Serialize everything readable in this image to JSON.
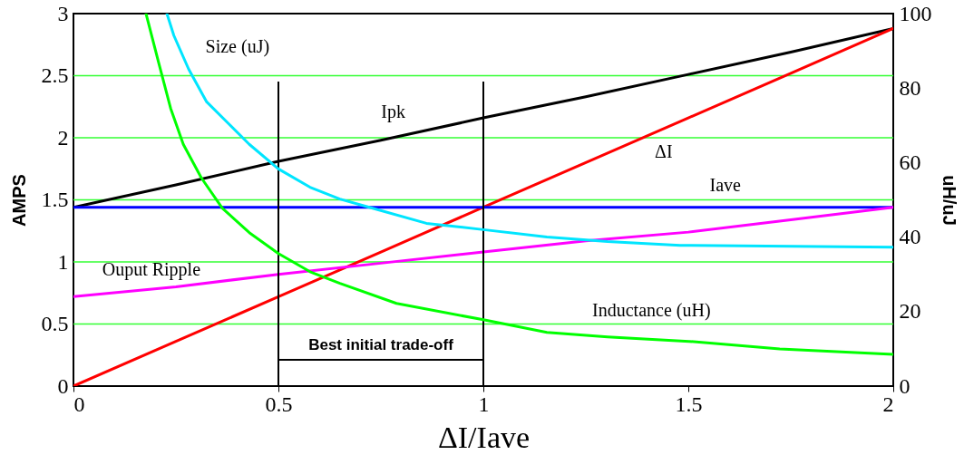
{
  "chart_data": {
    "type": "line",
    "xlabel": "ΔI/Iave",
    "ylabel": "AMPS",
    "y2label": "uH/uJ",
    "xlim": [
      0,
      2
    ],
    "xticks": [
      0,
      0.5,
      1,
      1.5,
      2
    ],
    "ylim": [
      0,
      3
    ],
    "yticks": [
      0,
      0.5,
      1,
      1.5,
      2,
      2.5,
      3
    ],
    "y2lim": [
      0,
      100
    ],
    "y2ticks": [
      0,
      20,
      40,
      60,
      80,
      100
    ],
    "grid": "y",
    "line_style": "solid",
    "marker": "none",
    "series": [
      {
        "name": "Ipk",
        "color": "#000000",
        "x": [
          0,
          0.25,
          0.5,
          0.75,
          1,
          1.25,
          1.5,
          1.75,
          2
        ],
        "values": [
          1.44,
          1.62,
          1.81,
          1.98,
          2.16,
          2.33,
          2.51,
          2.69,
          2.88
        ]
      },
      {
        "name": "ΔI",
        "color": "#ff0000",
        "x": [
          0,
          0.25,
          0.5,
          0.75,
          1,
          1.25,
          1.5,
          1.75,
          2
        ],
        "values": [
          0,
          0.36,
          0.72,
          1.08,
          1.44,
          1.8,
          2.16,
          2.52,
          2.88
        ]
      },
      {
        "name": "Iave",
        "color": "#0000ff",
        "x": [
          0,
          2
        ],
        "values": [
          1.44,
          1.44
        ]
      },
      {
        "name": "Ouput Ripple",
        "color": "#ff00ff",
        "x": [
          0,
          0.25,
          0.5,
          0.75,
          1,
          1.25,
          1.5,
          1.75,
          2
        ],
        "values": [
          0.72,
          0.8,
          0.9,
          0.99,
          1.08,
          1.17,
          1.24,
          1.34,
          1.44
        ]
      },
      {
        "name": "Size (uJ)",
        "color": "#00e5ff",
        "axis": "y2",
        "x": [
          0.228,
          0.245,
          0.281,
          0.325,
          0.378,
          0.429,
          0.5,
          0.577,
          0.65,
          0.712,
          0.861,
          1.0,
          1.155,
          1.303,
          1.48,
          2.0
        ],
        "values": [
          100,
          94.1,
          85.1,
          76.3,
          70.5,
          64.9,
          58.3,
          53.4,
          50.2,
          48.3,
          43.7,
          42.0,
          40.0,
          38.8,
          37.8,
          37.3
        ]
      },
      {
        "name": "Inductance (uH)",
        "color": "#00ff00",
        "axis": "y2",
        "x": [
          0.177,
          0.208,
          0.237,
          0.268,
          0.312,
          0.363,
          0.429,
          0.5,
          0.577,
          0.65,
          0.788,
          1.0,
          1.155,
          1.303,
          1.502,
          1.723,
          2.0
        ],
        "values": [
          100,
          86.8,
          74.6,
          64.9,
          55.9,
          47.8,
          41.2,
          35.6,
          30.7,
          27.6,
          22.2,
          17.8,
          14.4,
          13.2,
          12.0,
          10.0,
          8.5
        ]
      }
    ],
    "ref_lines": [
      {
        "axis": "x",
        "value": 0.5,
        "color": "#000000"
      },
      {
        "axis": "x",
        "value": 1,
        "color": "#000000"
      }
    ],
    "annotations": [
      "Best initial trade-off"
    ]
  }
}
